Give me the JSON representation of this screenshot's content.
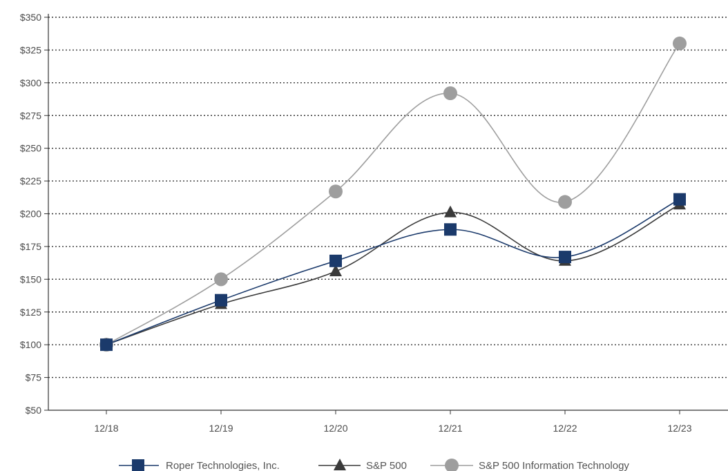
{
  "chart_data": {
    "type": "line",
    "categories": [
      "12/18",
      "12/19",
      "12/20",
      "12/21",
      "12/22",
      "12/23"
    ],
    "ylim": [
      50,
      350
    ],
    "yticks": [
      50,
      75,
      100,
      125,
      150,
      175,
      200,
      225,
      250,
      275,
      300,
      325,
      350
    ],
    "ytick_labels": [
      "$50",
      "$75",
      "$100",
      "$125",
      "$150",
      "$175",
      "$200",
      "$225",
      "$250",
      "$275",
      "$300",
      "$325",
      "$350"
    ],
    "grid": "horizontal dotted",
    "legend_position": "bottom",
    "series": [
      {
        "name": "Roper Technologies, Inc.",
        "values": [
          100,
          134,
          164,
          188,
          167,
          211
        ],
        "color": "#1b3a6b",
        "marker": "square"
      },
      {
        "name": "S&P 500",
        "values": [
          100,
          131,
          156,
          201,
          164,
          207
        ],
        "color": "#3a3a3a",
        "marker": "triangle"
      },
      {
        "name": "S&P 500 Information Technology",
        "values": [
          100,
          150,
          217,
          292,
          209,
          330
        ],
        "color": "#9e9e9e",
        "marker": "circle"
      }
    ]
  }
}
